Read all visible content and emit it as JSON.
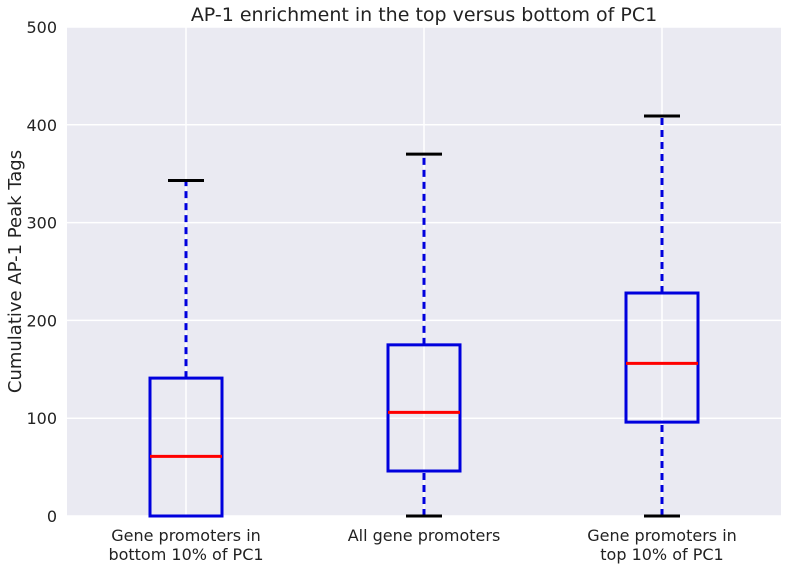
{
  "chart_data": {
    "type": "box",
    "title": "AP-1 enrichment in the top versus bottom of PC1",
    "xlabel": "",
    "ylabel": "Cumulative AP-1 Peak Tags",
    "ylim": [
      0,
      500
    ],
    "yticks": [
      "0",
      "100",
      "200",
      "300",
      "400",
      "500"
    ],
    "grid": true,
    "legend": "none",
    "categories": [
      [
        "Gene promoters in",
        "bottom 10% of PC1"
      ],
      [
        "All gene promoters"
      ],
      [
        "Gene promoters in",
        "top 10% of PC1"
      ]
    ],
    "boxes": [
      {
        "whisker_low": 0,
        "q1": 0,
        "median": 61,
        "q3": 141,
        "whisker_high": 343
      },
      {
        "whisker_low": 0,
        "q1": 46,
        "median": 106,
        "q3": 175,
        "whisker_high": 370
      },
      {
        "whisker_low": 0,
        "q1": 96,
        "median": 156,
        "q3": 228,
        "whisker_high": 409
      }
    ],
    "colors": {
      "background": "#eaeaf2",
      "grid": "#ffffff",
      "box": "#0000dd",
      "median": "#ff0000",
      "whisker": "#0000dd",
      "cap": "#000000"
    }
  }
}
